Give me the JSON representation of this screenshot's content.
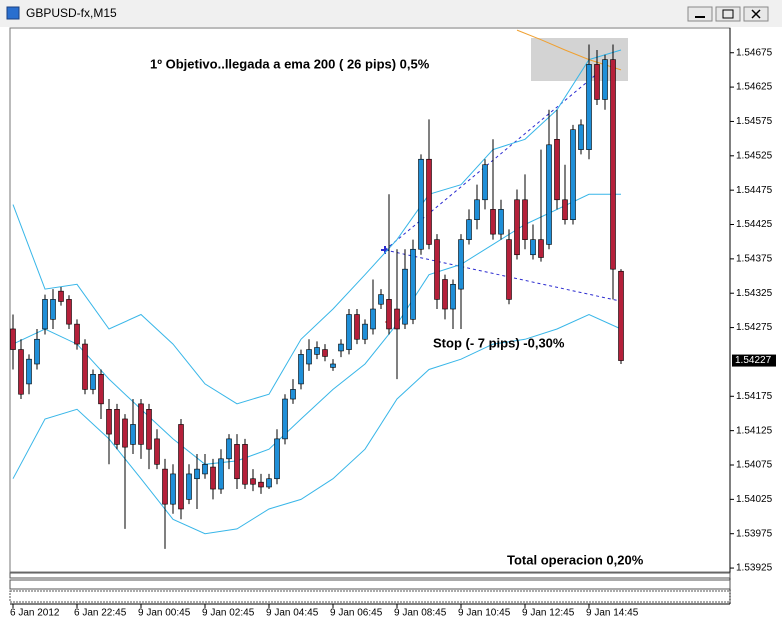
{
  "chart_data": {
    "type": "candlestick",
    "title": "GBPUSD-fx,M15",
    "categories": [
      "6 Jan 2012",
      null,
      null,
      null,
      null,
      null,
      null,
      null,
      "6 Jan 22:45",
      null,
      null,
      null,
      null,
      null,
      null,
      null,
      "9 Jan 00:45",
      null,
      null,
      null,
      null,
      null,
      null,
      null,
      "9 Jan 02:45",
      null,
      null,
      null,
      null,
      null,
      null,
      null,
      "9 Jan 04:45",
      null,
      null,
      null,
      null,
      null,
      null,
      null,
      "9 Jan 06:45",
      null,
      null,
      null,
      null,
      null,
      null,
      null,
      "9 Jan 08:45",
      null,
      null,
      null,
      null,
      null,
      null,
      null,
      "9 Jan 10:45",
      null,
      null,
      null,
      null,
      null,
      null,
      null,
      "9 Jan 12:45",
      null,
      null,
      null,
      null,
      null,
      null,
      null,
      "9 Jan 14:45",
      null,
      null,
      null,
      null
    ],
    "open": [
      1.54273,
      1.54243,
      1.54193,
      1.54222,
      1.54273,
      1.54287,
      1.54328,
      1.54316,
      1.5428,
      1.54251,
      1.54185,
      1.54207,
      1.54156,
      1.54156,
      1.54142,
      1.54105,
      1.54164,
      1.54156,
      1.54113,
      1.54069,
      1.54018,
      1.54134,
      1.54025,
      1.54055,
      1.54062,
      1.54072,
      1.5404,
      1.54084,
      1.54105,
      1.54105,
      1.54055,
      1.5405,
      1.54043,
      1.54055,
      1.54113,
      1.54171,
      1.54193,
      1.54222,
      1.54236,
      1.54243,
      1.54217,
      1.54241,
      1.54243,
      1.54294,
      1.54258,
      1.54273,
      1.54309,
      1.54316,
      1.54302,
      1.5428,
      1.54287,
      1.54389,
      1.5452,
      1.54403,
      1.54345,
      1.54302,
      1.54331,
      1.54403,
      1.54432,
      1.54461,
      1.54447,
      1.54411,
      1.54403,
      1.54461,
      1.54461,
      1.54381,
      1.54403,
      1.54396,
      1.54549,
      1.54461,
      1.54432,
      1.54534,
      1.54534,
      1.54658,
      1.54607,
      1.54665,
      1.54357
    ],
    "high": [
      1.54294,
      1.54258,
      1.54236,
      1.54273,
      1.54323,
      1.54331,
      1.54334,
      1.54322,
      1.54287,
      1.54258,
      1.54214,
      1.54214,
      1.54171,
      1.54164,
      1.54149,
      1.54171,
      1.54171,
      1.54164,
      1.54127,
      1.54084,
      1.54076,
      1.54142,
      1.54076,
      1.54091,
      1.54091,
      1.54084,
      1.54098,
      1.5412,
      1.5412,
      1.54113,
      1.54069,
      1.54062,
      1.54062,
      1.54127,
      1.54178,
      1.542,
      1.54243,
      1.54258,
      1.54255,
      1.54251,
      1.54229,
      1.54258,
      1.54302,
      1.54302,
      1.54287,
      1.54345,
      1.54331,
      1.54469,
      1.54389,
      1.54389,
      1.54403,
      1.54527,
      1.54578,
      1.54411,
      1.54352,
      1.54345,
      1.54411,
      1.54447,
      1.54483,
      1.5452,
      1.54549,
      1.54461,
      1.54418,
      1.54476,
      1.54498,
      1.54425,
      1.54534,
      1.54592,
      1.54592,
      1.54512,
      1.5457,
      1.54578,
      1.54687,
      1.54679,
      1.54672,
      1.54687,
      1.5436
    ],
    "low": [
      1.54214,
      1.54171,
      1.54178,
      1.54214,
      1.54265,
      1.54273,
      1.54307,
      1.54273,
      1.54243,
      1.54178,
      1.54178,
      1.54142,
      1.54076,
      1.54098,
      1.53982,
      1.54091,
      1.54084,
      1.54069,
      1.54069,
      1.53953,
      1.54004,
      1.53996,
      1.54018,
      1.54011,
      1.54055,
      1.54025,
      1.54033,
      1.54069,
      1.5404,
      1.5404,
      1.54037,
      1.54033,
      1.5404,
      1.54047,
      1.54105,
      1.54164,
      1.54185,
      1.54212,
      1.54229,
      1.54226,
      1.54212,
      1.54232,
      1.54236,
      1.54251,
      1.54251,
      1.54265,
      1.54302,
      1.54265,
      1.542,
      1.54273,
      1.5428,
      1.54381,
      1.54389,
      1.54302,
      1.54287,
      1.54273,
      1.54273,
      1.54396,
      1.54418,
      1.54447,
      1.54403,
      1.54403,
      1.54309,
      1.54374,
      1.54389,
      1.54374,
      1.54371,
      1.54389,
      1.54447,
      1.54425,
      1.54425,
      1.54527,
      1.5452,
      1.54599,
      1.54592,
      1.54316,
      1.54222
    ],
    "close": [
      1.54243,
      1.54178,
      1.54229,
      1.54258,
      1.54316,
      1.54316,
      1.54313,
      1.5428,
      1.54251,
      1.54185,
      1.54207,
      1.54164,
      1.5412,
      1.54105,
      1.54101,
      1.54134,
      1.54105,
      1.54098,
      1.54076,
      1.54018,
      1.54062,
      1.54011,
      1.54062,
      1.54069,
      1.54076,
      1.5404,
      1.54084,
      1.54113,
      1.54055,
      1.54047,
      1.54047,
      1.54043,
      1.54055,
      1.54113,
      1.54171,
      1.54185,
      1.54236,
      1.54243,
      1.54246,
      1.54233,
      1.54222,
      1.54251,
      1.54294,
      1.54258,
      1.5428,
      1.54302,
      1.54323,
      1.54273,
      1.54273,
      1.5436,
      1.54389,
      1.5452,
      1.54396,
      1.54316,
      1.54302,
      1.54338,
      1.54403,
      1.54432,
      1.54461,
      1.54512,
      1.54411,
      1.54447,
      1.54316,
      1.54381,
      1.54403,
      1.54403,
      1.54377,
      1.54541,
      1.54461,
      1.54432,
      1.54563,
      1.5457,
      1.54658,
      1.54607,
      1.54665,
      1.5436,
      1.54227
    ],
    "up_color": "#1f8fd8",
    "down_color": "#b5203a",
    "series": [
      {
        "color": "#38b6e8",
        "x": [
          0,
          4,
          8,
          12,
          16,
          20,
          24,
          28,
          32,
          36,
          40,
          44,
          48,
          52,
          56,
          60,
          64,
          68,
          72,
          76
        ],
        "values": [
          1.54454,
          1.54331,
          1.54338,
          1.54273,
          1.54294,
          1.54251,
          1.54193,
          1.54164,
          1.54178,
          1.54258,
          1.54302,
          1.54352,
          1.54403,
          1.54469,
          1.54483,
          1.54534,
          1.54549,
          1.54592,
          1.54665,
          1.54679
        ]
      },
      {
        "color": "#38b6e8",
        "x": [
          0,
          4,
          8,
          12,
          16,
          20,
          24,
          28,
          32,
          36,
          40,
          44,
          48,
          52,
          56,
          60,
          64,
          68,
          72,
          76
        ],
        "values": [
          1.54251,
          1.54273,
          1.54251,
          1.542,
          1.54156,
          1.54113,
          1.54076,
          1.54081,
          1.54098,
          1.54142,
          1.54185,
          1.54222,
          1.5428,
          1.54352,
          1.54367,
          1.54396,
          1.54425,
          1.54447,
          1.54469,
          1.54469
        ]
      },
      {
        "color": "#38b6e8",
        "x": [
          0,
          4,
          8,
          12,
          16,
          20,
          24,
          28,
          32,
          36,
          40,
          44,
          48,
          52,
          56,
          60,
          64,
          68,
          72,
          76
        ],
        "values": [
          1.54055,
          1.54142,
          1.54156,
          1.54113,
          1.54055,
          1.53996,
          1.53975,
          1.53982,
          1.54011,
          1.54025,
          1.54055,
          1.54098,
          1.54171,
          1.54214,
          1.54229,
          1.54251,
          1.54258,
          1.54273,
          1.54294,
          1.54273
        ]
      },
      {
        "color": "#f0a030",
        "x": [
          63,
          66,
          69,
          72,
          76
        ],
        "values": [
          1.54708,
          1.54694,
          1.54679,
          1.54665,
          1.5465
        ]
      }
    ],
    "ylim": [
      1.5392,
      1.54711
    ],
    "yticks": [
      1.54675,
      1.54625,
      1.54575,
      1.54525,
      1.54475,
      1.54425,
      1.54375,
      1.54325,
      1.54275,
      1.54175,
      1.54125,
      1.54075,
      1.54025,
      1.53975,
      1.53925
    ],
    "annotations": [
      "1º Objetivo..llegada a ema 200 ( 26 pips) 0,5%",
      "Stop (- 7 pips) -0,30%",
      "Total operacion 0,20%"
    ]
  }
}
